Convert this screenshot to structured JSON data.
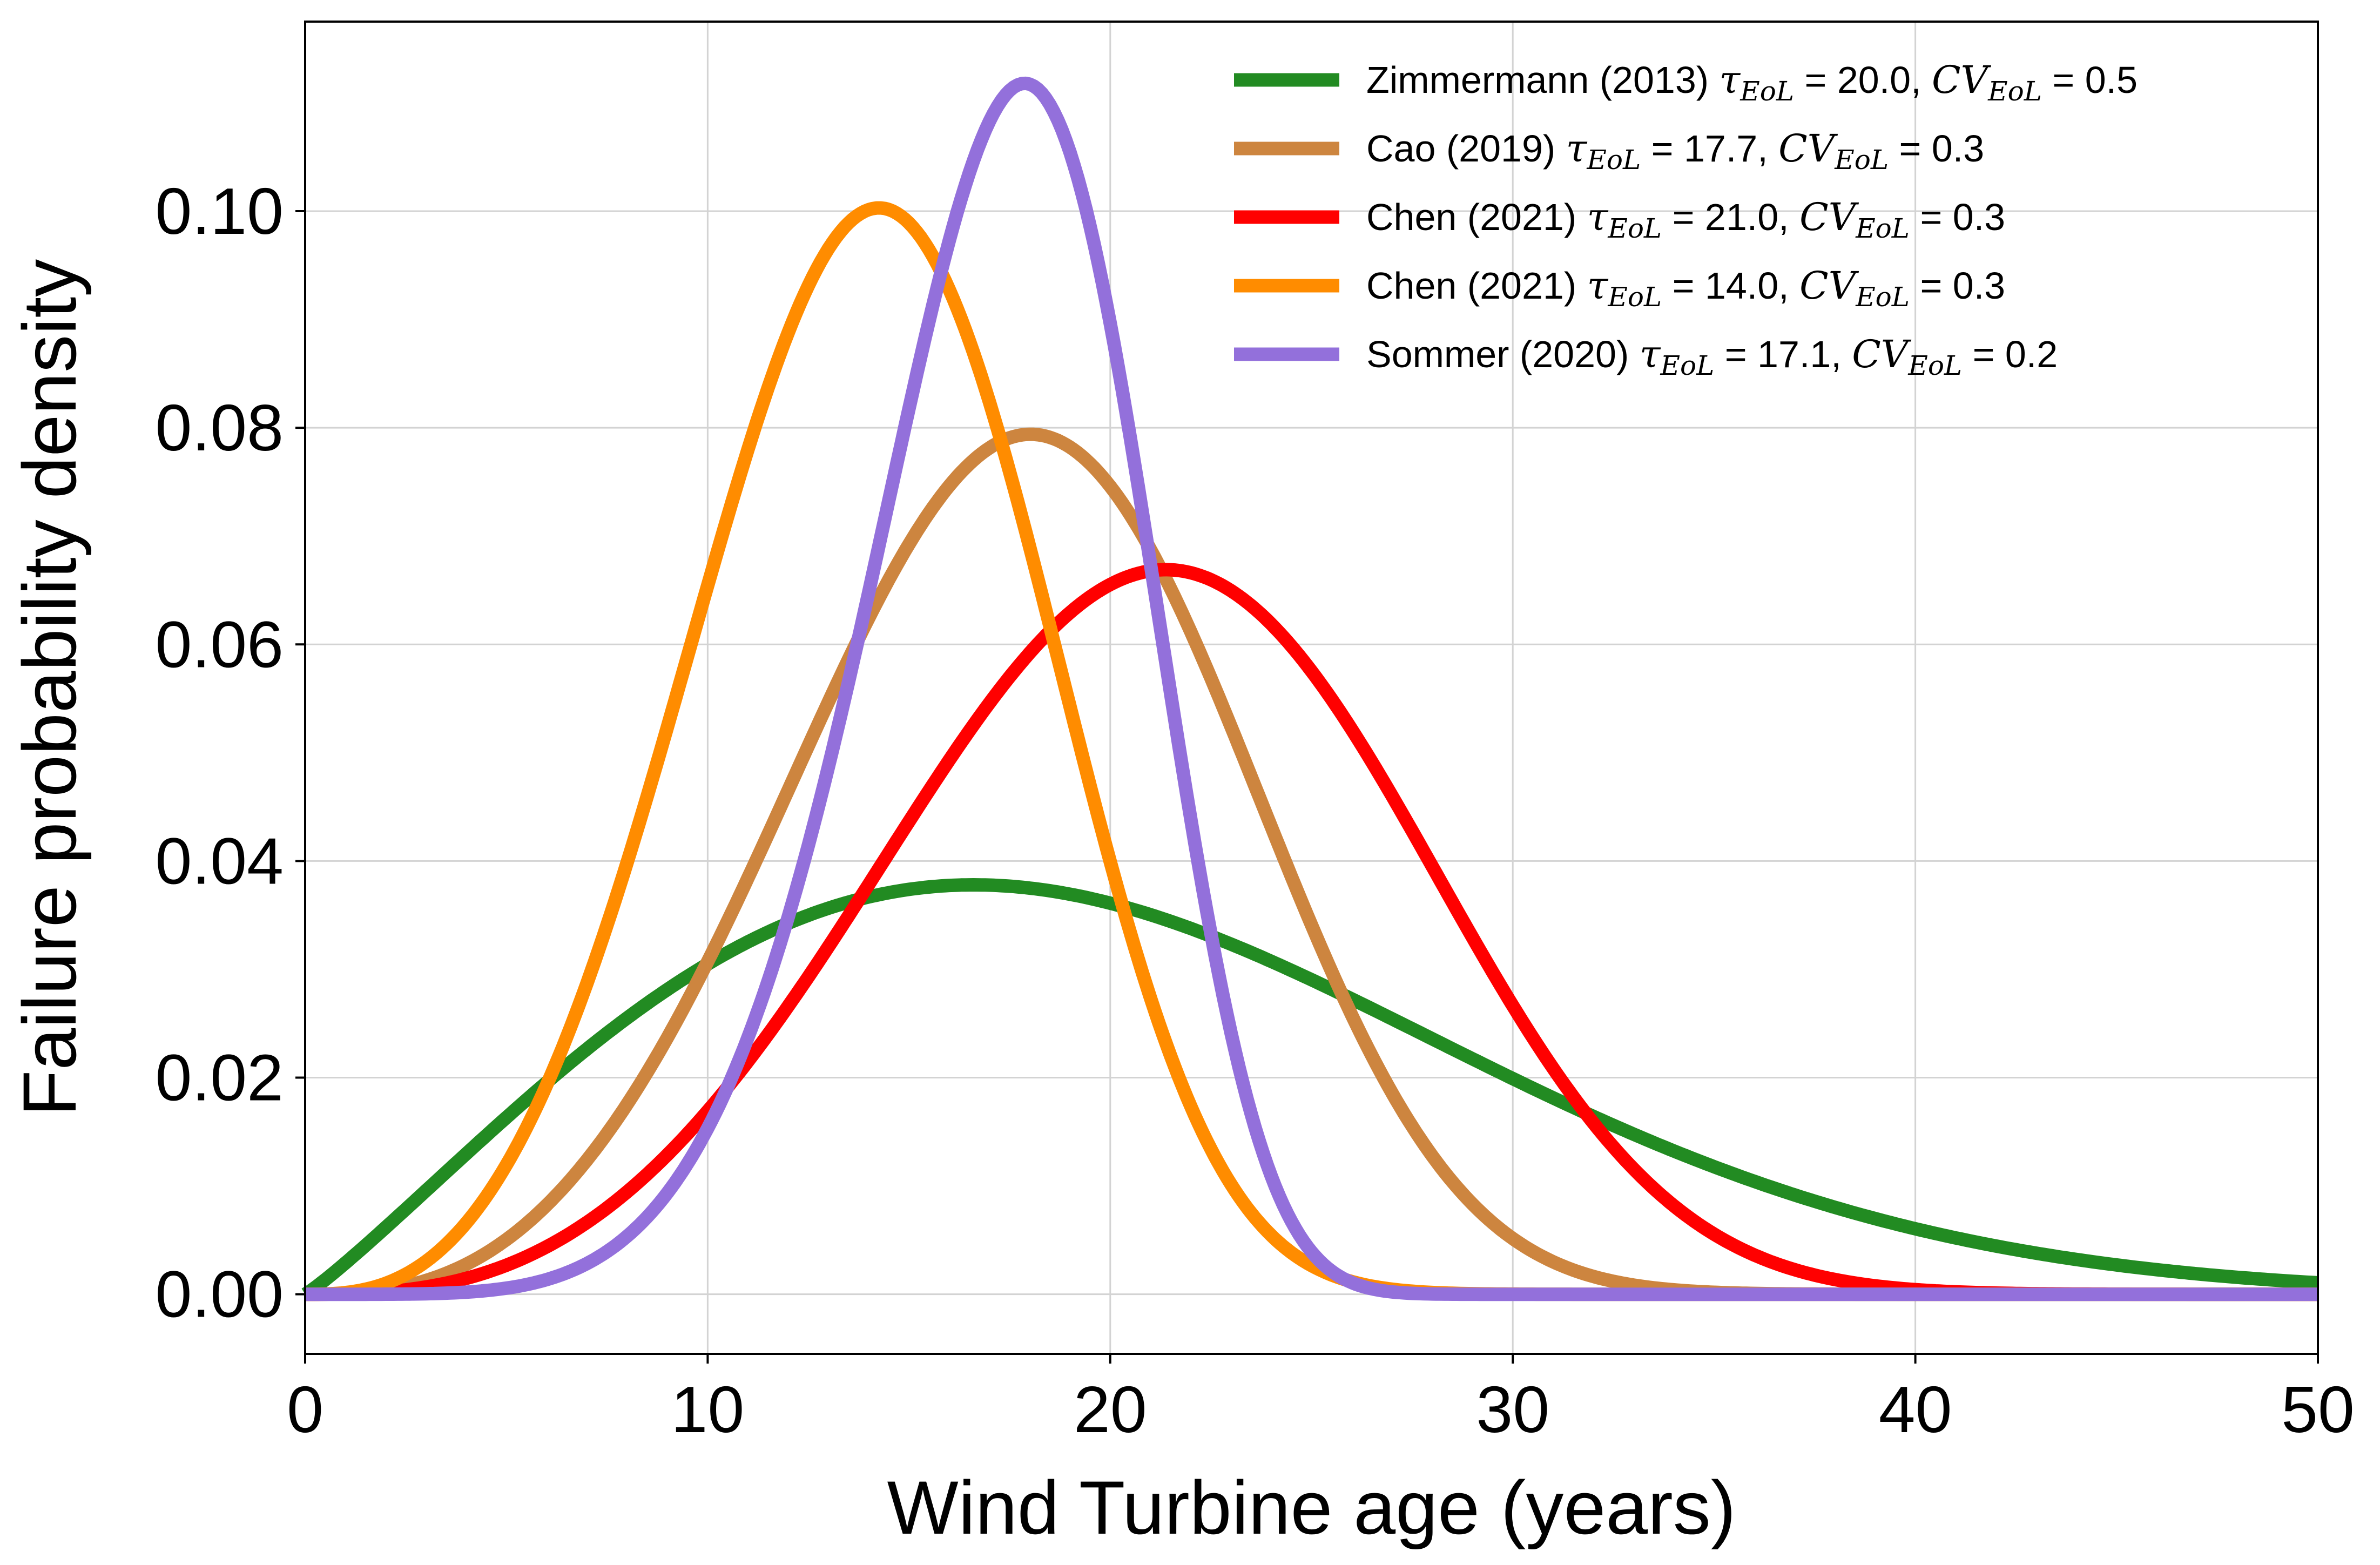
{
  "chart_data": {
    "type": "line",
    "title": "",
    "xlabel": "Wind Turbine age (years)",
    "ylabel": "Failure probability density",
    "xlim": [
      0,
      50
    ],
    "ylim": [
      -0.0055,
      0.1175
    ],
    "grid": true,
    "legend_position": "top-right",
    "x_ticks": [
      0,
      10,
      20,
      30,
      40,
      50
    ],
    "x_tick_labels": [
      "0",
      "10",
      "20",
      "30",
      "40",
      "50"
    ],
    "y_ticks": [
      0.0,
      0.02,
      0.04,
      0.06,
      0.08,
      0.1
    ],
    "y_tick_labels": [
      "0.00",
      "0.02",
      "0.04",
      "0.06",
      "0.08",
      "0.10"
    ],
    "x_range_sampled": [
      0,
      50
    ],
    "series": [
      {
        "name": "Zimmermann (2013)",
        "label_prefix": "Zimmermann (2013)",
        "tau_eol": "20.0",
        "cv_eol": "0.5",
        "color": "#228b22",
        "distribution": "weibull",
        "mean": 20.0,
        "cv": 0.5,
        "peak": {
          "x": 16.0,
          "y": 0.0378
        }
      },
      {
        "name": "Cao (2019)",
        "label_prefix": "Cao (2019)",
        "tau_eol": "17.7",
        "cv_eol": "0.3",
        "color": "#cd853f",
        "distribution": "weibull",
        "mean": 17.7,
        "cv": 0.3,
        "peak": {
          "x": 18.2,
          "y": 0.0794
        }
      },
      {
        "name": "Chen (2021)",
        "label_prefix": "Chen (2021)",
        "tau_eol": "21.0",
        "cv_eol": "0.3",
        "color": "#ff0000",
        "distribution": "weibull",
        "mean": 21.0,
        "cv": 0.3,
        "peak": {
          "x": 21.6,
          "y": 0.0669
        }
      },
      {
        "name": "Chen (2021)",
        "label_prefix": "Chen (2021)",
        "tau_eol": "14.0",
        "cv_eol": "0.3",
        "color": "#ff8c00",
        "distribution": "weibull",
        "mean": 14.0,
        "cv": 0.3,
        "peak": {
          "x": 14.4,
          "y": 0.1003
        }
      },
      {
        "name": "Sommer (2020)",
        "label_prefix": "Sommer (2020)",
        "tau_eol": "17.1",
        "cv_eol": "0.2",
        "color": "#9370db",
        "distribution": "weibull",
        "mean": 17.1,
        "cv": 0.2,
        "peak": {
          "x": 17.1,
          "y": 0.1118
        }
      }
    ],
    "legend_symbols": {
      "tau": "τ",
      "cv": "CV",
      "subscript": "EoL",
      "eq": " = "
    }
  }
}
